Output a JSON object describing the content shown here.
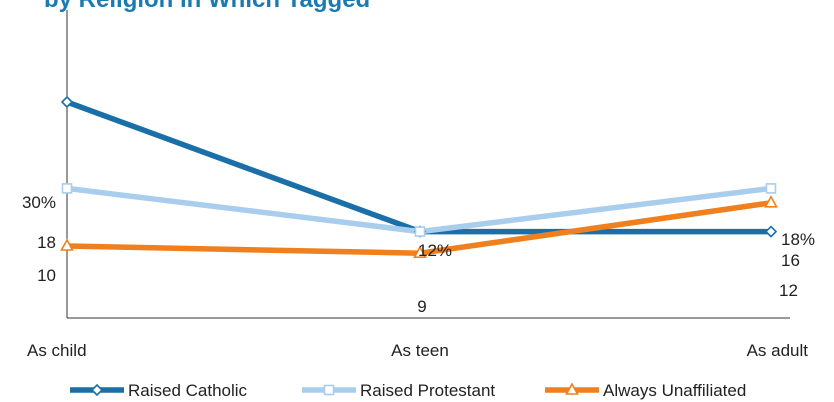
{
  "title_fragment": "by Religion in Which Tagged",
  "chart_data": {
    "type": "line",
    "categories": [
      "As child",
      "As teen",
      "As adult"
    ],
    "ylim": [
      0,
      40
    ],
    "grid": false,
    "legend_position": "bottom",
    "series": [
      {
        "name": "Raised Catholic",
        "values": [
          30,
          12,
          12
        ],
        "color": "#1b6fa8",
        "marker": "diamond",
        "labels": [
          "30%",
          "",
          "12"
        ]
      },
      {
        "name": "Raised Protestant",
        "values": [
          18,
          12,
          18
        ],
        "color": "#a9cdec",
        "marker": "square",
        "labels": [
          "18",
          "12%",
          "18%"
        ]
      },
      {
        "name": "Always Unaffiliated",
        "values": [
          10,
          9,
          16
        ],
        "color": "#f07f1d",
        "marker": "triangle",
        "labels": [
          "10",
          "9",
          "16"
        ]
      }
    ]
  }
}
